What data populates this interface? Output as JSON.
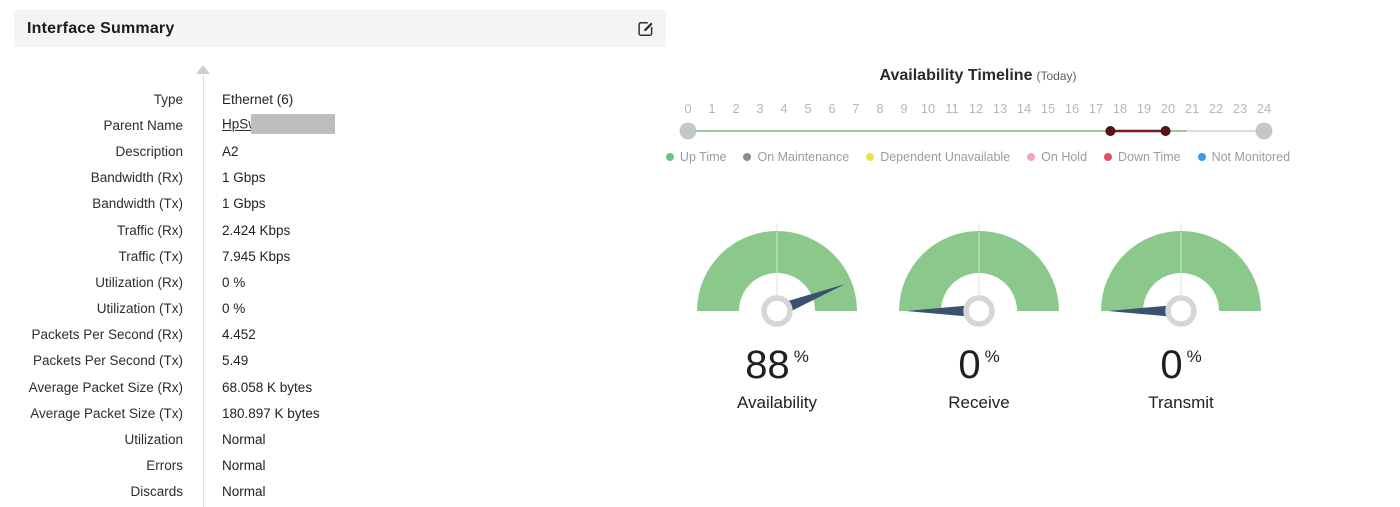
{
  "panel": {
    "title": "Interface Summary",
    "edit_tooltip": "Edit",
    "fields": [
      {
        "label": "Type",
        "value": "Ethernet (6)"
      },
      {
        "label": "Parent Name",
        "value": "HpSw",
        "redacted": true
      },
      {
        "label": "Description",
        "value": "A2"
      },
      {
        "label": "Bandwidth (Rx)",
        "value": "1 Gbps"
      },
      {
        "label": "Bandwidth (Tx)",
        "value": "1 Gbps"
      },
      {
        "label": "Traffic (Rx)",
        "value": "2.424 Kbps"
      },
      {
        "label": "Traffic (Tx)",
        "value": "7.945 Kbps"
      },
      {
        "label": "Utilization (Rx)",
        "value": "0 %"
      },
      {
        "label": "Utilization (Tx)",
        "value": "0 %"
      },
      {
        "label": "Packets Per Second (Rx)",
        "value": "4.452"
      },
      {
        "label": "Packets Per Second (Tx)",
        "value": "5.49"
      },
      {
        "label": "Average Packet Size (Rx)",
        "value": "68.058 K bytes"
      },
      {
        "label": "Average Packet Size (Tx)",
        "value": "180.897 K bytes"
      },
      {
        "label": "Utilization",
        "value": "Normal"
      },
      {
        "label": "Errors",
        "value": "Normal"
      },
      {
        "label": "Discards",
        "value": "Normal"
      }
    ]
  },
  "chart_data": [
    {
      "type": "timeline",
      "title": "Availability Timeline",
      "subtitle": "(Today)",
      "xlim": [
        0,
        24
      ],
      "x_ticks": [
        "0",
        "1",
        "2",
        "3",
        "4",
        "5",
        "6",
        "7",
        "8",
        "9",
        "10",
        "11",
        "12",
        "13",
        "14",
        "15",
        "16",
        "17",
        "18",
        "19",
        "20",
        "21",
        "22",
        "23",
        "24"
      ],
      "tick_color": "#b8b8b8",
      "endpoint_color": "#c7c7c7",
      "segments": [
        {
          "state": "Up Time",
          "from": 0,
          "to": 17.6,
          "color": "#97ce97",
          "width": 2
        },
        {
          "state": "Down Time",
          "from": 17.6,
          "to": 19.9,
          "color": "#7b1d1d",
          "width": 2.5
        },
        {
          "state": "Up Time",
          "from": 19.9,
          "to": 20.8,
          "color": "#97ce97",
          "width": 2
        },
        {
          "state": "Remaining",
          "from": 20.8,
          "to": 24,
          "color": "#dcdcdc",
          "width": 2
        }
      ],
      "events": [
        {
          "hour": 17.6,
          "color": "#5c1414"
        },
        {
          "hour": 19.9,
          "color": "#5c1414"
        }
      ],
      "legend": [
        {
          "label": "Up Time",
          "color": "#72c378"
        },
        {
          "label": "On Maintenance",
          "color": "#8b8b8b"
        },
        {
          "label": "Dependent Unavailable",
          "color": "#e9e24d"
        },
        {
          "label": "On Hold",
          "color": "#f1a7b8"
        },
        {
          "label": "Down Time",
          "color": "#dc5360"
        },
        {
          "label": "Not Monitored",
          "color": "#4197ea"
        }
      ]
    },
    {
      "type": "gauge",
      "value": 88,
      "unit": "%",
      "label": "Availability",
      "min": 0,
      "max": 100,
      "arc_color": "#8bc88b",
      "needle_color": "#3a5170"
    },
    {
      "type": "gauge",
      "value": 0,
      "unit": "%",
      "label": "Receive",
      "min": 0,
      "max": 100,
      "arc_color": "#8bc88b",
      "needle_color": "#3a5170"
    },
    {
      "type": "gauge",
      "value": 0,
      "unit": "%",
      "label": "Transmit",
      "min": 0,
      "max": 100,
      "arc_color": "#8bc88b",
      "needle_color": "#3a5170"
    }
  ]
}
